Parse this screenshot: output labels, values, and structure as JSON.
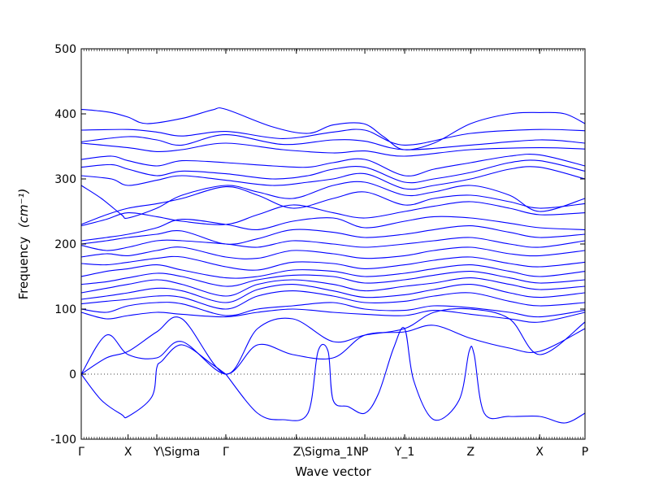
{
  "chart_data": {
    "type": "line",
    "xlabel": "Wave vector",
    "ylabel": "Frequency",
    "ylabel_unit": "(cm⁻¹)",
    "ylim": [
      -100,
      500
    ],
    "yticks": [
      -100,
      0,
      100,
      200,
      300,
      400,
      500
    ],
    "xlim": [
      0,
      1
    ],
    "zero_line": true,
    "grid": false,
    "line_color": "#0000ff",
    "xticks": [
      {
        "pos": 0.0,
        "label": "Γ"
      },
      {
        "pos": 0.093,
        "label": "X"
      },
      {
        "pos": 0.15,
        "label": "Y\\Sigma"
      },
      {
        "pos": 0.287,
        "label": "Γ"
      },
      {
        "pos": 0.427,
        "label": "Z\\Sigma_1N"
      },
      {
        "pos": 0.563,
        "label": "P"
      },
      {
        "pos": 0.642,
        "label": "Y_1"
      },
      {
        "pos": 0.773,
        "label": "Z"
      },
      {
        "pos": 0.91,
        "label": "X"
      },
      {
        "pos": 1.0,
        "label": "P"
      }
    ],
    "series": [
      {
        "x": [
          0.0,
          0.03,
          0.06,
          0.093,
          0.13,
          0.2,
          0.26,
          0.287,
          0.38,
          0.45,
          0.5,
          0.56,
          0.6,
          0.64,
          0.7,
          0.773,
          0.85,
          0.91,
          0.96,
          1.0
        ],
        "y": [
          407,
          405,
          402,
          395,
          385,
          393,
          406,
          407,
          380,
          370,
          383,
          385,
          365,
          345,
          355,
          385,
          400,
          402,
          400,
          385
        ]
      },
      {
        "x": [
          0.0,
          0.093,
          0.15,
          0.2,
          0.287,
          0.4,
          0.5,
          0.563,
          0.642,
          0.773,
          0.91,
          1.0
        ],
        "y": [
          375,
          376,
          372,
          366,
          373,
          362,
          372,
          375,
          352,
          370,
          376,
          374
        ]
      },
      {
        "x": [
          0.0,
          0.093,
          0.15,
          0.2,
          0.287,
          0.4,
          0.5,
          0.563,
          0.642,
          0.773,
          0.91,
          1.0
        ],
        "y": [
          357,
          365,
          360,
          352,
          368,
          353,
          360,
          358,
          345,
          352,
          360,
          355
        ]
      },
      {
        "x": [
          0.0,
          0.093,
          0.15,
          0.2,
          0.287,
          0.4,
          0.5,
          0.563,
          0.642,
          0.773,
          0.91,
          1.0
        ],
        "y": [
          355,
          348,
          342,
          345,
          355,
          345,
          340,
          343,
          335,
          345,
          348,
          346
        ]
      },
      {
        "x": [
          0.0,
          0.06,
          0.093,
          0.15,
          0.2,
          0.287,
          0.38,
          0.45,
          0.5,
          0.563,
          0.642,
          0.7,
          0.773,
          0.85,
          0.91,
          1.0
        ],
        "y": [
          330,
          335,
          328,
          320,
          328,
          325,
          320,
          318,
          325,
          330,
          305,
          315,
          325,
          335,
          337,
          320
        ]
      },
      {
        "x": [
          0.0,
          0.06,
          0.093,
          0.15,
          0.2,
          0.287,
          0.38,
          0.45,
          0.5,
          0.563,
          0.642,
          0.7,
          0.773,
          0.85,
          0.91,
          1.0
        ],
        "y": [
          318,
          322,
          315,
          305,
          312,
          308,
          300,
          305,
          315,
          318,
          295,
          300,
          310,
          325,
          328,
          312
        ]
      },
      {
        "x": [
          0.0,
          0.06,
          0.093,
          0.15,
          0.2,
          0.287,
          0.38,
          0.45,
          0.5,
          0.563,
          0.642,
          0.7,
          0.773,
          0.85,
          0.91,
          1.0
        ],
        "y": [
          305,
          300,
          290,
          298,
          305,
          298,
          290,
          295,
          300,
          308,
          285,
          290,
          300,
          315,
          318,
          300
        ]
      },
      {
        "x": [
          0.0,
          0.04,
          0.08,
          0.093,
          0.15,
          0.2,
          0.287,
          0.35,
          0.42,
          0.5,
          0.563,
          0.642,
          0.7,
          0.773,
          0.85,
          0.91,
          1.0
        ],
        "y": [
          290,
          270,
          245,
          240,
          255,
          275,
          290,
          280,
          270,
          290,
          295,
          275,
          280,
          290,
          275,
          250,
          270
        ]
      },
      {
        "x": [
          0.0,
          0.05,
          0.093,
          0.15,
          0.2,
          0.287,
          0.35,
          0.42,
          0.5,
          0.563,
          0.642,
          0.7,
          0.773,
          0.85,
          0.91,
          1.0
        ],
        "y": [
          230,
          245,
          255,
          262,
          270,
          288,
          275,
          255,
          270,
          280,
          260,
          270,
          275,
          265,
          255,
          262
        ]
      },
      {
        "x": [
          0.0,
          0.05,
          0.093,
          0.15,
          0.2,
          0.287,
          0.35,
          0.42,
          0.5,
          0.563,
          0.642,
          0.7,
          0.773,
          0.85,
          0.91,
          1.0
        ],
        "y": [
          228,
          238,
          248,
          242,
          235,
          230,
          245,
          260,
          248,
          240,
          250,
          258,
          265,
          255,
          245,
          248
        ]
      },
      {
        "x": [
          0.0,
          0.05,
          0.093,
          0.15,
          0.2,
          0.287,
          0.35,
          0.42,
          0.5,
          0.563,
          0.642,
          0.7,
          0.773,
          0.85,
          0.91,
          1.0
        ],
        "y": [
          205,
          210,
          215,
          225,
          238,
          230,
          222,
          235,
          240,
          225,
          235,
          242,
          240,
          232,
          225,
          222
        ]
      },
      {
        "x": [
          0.0,
          0.05,
          0.093,
          0.15,
          0.2,
          0.287,
          0.35,
          0.42,
          0.5,
          0.563,
          0.642,
          0.7,
          0.773,
          0.85,
          0.91,
          1.0
        ],
        "y": [
          200,
          205,
          210,
          215,
          220,
          200,
          208,
          222,
          218,
          210,
          215,
          222,
          228,
          218,
          210,
          215
        ]
      },
      {
        "x": [
          0.0,
          0.05,
          0.093,
          0.15,
          0.2,
          0.287,
          0.35,
          0.42,
          0.5,
          0.563,
          0.642,
          0.7,
          0.773,
          0.85,
          0.91,
          1.0
        ],
        "y": [
          198,
          190,
          195,
          205,
          205,
          200,
          195,
          205,
          200,
          195,
          200,
          205,
          210,
          200,
          195,
          205
        ]
      },
      {
        "x": [
          0.0,
          0.05,
          0.093,
          0.15,
          0.2,
          0.287,
          0.35,
          0.42,
          0.5,
          0.563,
          0.642,
          0.7,
          0.773,
          0.85,
          0.91,
          1.0
        ],
        "y": [
          180,
          185,
          182,
          190,
          195,
          180,
          178,
          190,
          185,
          178,
          182,
          190,
          195,
          185,
          182,
          190
        ]
      },
      {
        "x": [
          0.0,
          0.05,
          0.093,
          0.15,
          0.2,
          0.287,
          0.35,
          0.42,
          0.5,
          0.563,
          0.642,
          0.7,
          0.773,
          0.85,
          0.91,
          1.0
        ],
        "y": [
          170,
          168,
          172,
          178,
          180,
          165,
          160,
          172,
          170,
          162,
          168,
          175,
          180,
          170,
          165,
          172
        ]
      },
      {
        "x": [
          0.0,
          0.05,
          0.093,
          0.15,
          0.2,
          0.287,
          0.35,
          0.42,
          0.5,
          0.563,
          0.642,
          0.7,
          0.773,
          0.85,
          0.91,
          1.0
        ],
        "y": [
          150,
          158,
          162,
          168,
          160,
          148,
          150,
          160,
          158,
          150,
          155,
          162,
          168,
          158,
          150,
          158
        ]
      },
      {
        "x": [
          0.0,
          0.05,
          0.093,
          0.15,
          0.2,
          0.287,
          0.35,
          0.42,
          0.5,
          0.563,
          0.642,
          0.7,
          0.773,
          0.85,
          0.91,
          1.0
        ],
        "y": [
          138,
          142,
          148,
          155,
          150,
          135,
          145,
          152,
          150,
          140,
          145,
          152,
          158,
          148,
          140,
          145
        ]
      },
      {
        "x": [
          0.0,
          0.05,
          0.093,
          0.15,
          0.2,
          0.287,
          0.35,
          0.42,
          0.5,
          0.563,
          0.642,
          0.7,
          0.773,
          0.85,
          0.91,
          1.0
        ],
        "y": [
          125,
          132,
          138,
          145,
          138,
          120,
          138,
          145,
          138,
          128,
          135,
          140,
          148,
          138,
          130,
          135
        ]
      },
      {
        "x": [
          0.0,
          0.05,
          0.093,
          0.15,
          0.2,
          0.287,
          0.35,
          0.42,
          0.5,
          0.563,
          0.642,
          0.7,
          0.773,
          0.85,
          0.91,
          1.0
        ],
        "y": [
          115,
          120,
          125,
          132,
          128,
          110,
          130,
          138,
          128,
          118,
          122,
          130,
          138,
          125,
          118,
          125
        ]
      },
      {
        "x": [
          0.0,
          0.05,
          0.093,
          0.15,
          0.2,
          0.287,
          0.35,
          0.42,
          0.5,
          0.563,
          0.642,
          0.7,
          0.773,
          0.85,
          0.91,
          1.0
        ],
        "y": [
          108,
          112,
          115,
          120,
          118,
          100,
          120,
          128,
          120,
          110,
          112,
          120,
          125,
          112,
          105,
          110
        ]
      },
      {
        "x": [
          0.0,
          0.05,
          0.093,
          0.15,
          0.2,
          0.287,
          0.35,
          0.42,
          0.5,
          0.563,
          0.642,
          0.7,
          0.773,
          0.85,
          0.91,
          1.0
        ],
        "y": [
          100,
          95,
          105,
          110,
          108,
          90,
          100,
          105,
          110,
          100,
          98,
          105,
          102,
          95,
          88,
          98
        ]
      },
      {
        "x": [
          0.0,
          0.05,
          0.093,
          0.15,
          0.2,
          0.287,
          0.35,
          0.42,
          0.5,
          0.563,
          0.642,
          0.7,
          0.773,
          0.85,
          0.91,
          1.0
        ],
        "y": [
          95,
          85,
          90,
          95,
          92,
          88,
          95,
          100,
          95,
          92,
          90,
          98,
          92,
          85,
          80,
          95
        ]
      },
      {
        "x": [
          0.0,
          0.05,
          0.093,
          0.15,
          0.2,
          0.287,
          0.35,
          0.42,
          0.5,
          0.563,
          0.642,
          0.7,
          0.773,
          0.85,
          0.91,
          1.0
        ],
        "y": [
          0,
          25,
          35,
          65,
          85,
          0,
          70,
          85,
          50,
          60,
          70,
          95,
          100,
          85,
          30,
          80
        ]
      },
      {
        "x": [
          0.0,
          0.05,
          0.093,
          0.15,
          0.2,
          0.287,
          0.35,
          0.42,
          0.5,
          0.563,
          0.642,
          0.7,
          0.773,
          0.85,
          0.91,
          1.0
        ],
        "y": [
          0,
          60,
          30,
          25,
          50,
          0,
          45,
          30,
          25,
          60,
          65,
          75,
          55,
          40,
          35,
          70
        ]
      },
      {
        "x": [
          0.0,
          0.04,
          0.08,
          0.093,
          0.14,
          0.15,
          0.16,
          0.2,
          0.26,
          0.287
        ],
        "y": [
          0,
          -40,
          -62,
          -65,
          -35,
          10,
          20,
          45,
          15,
          0
        ]
      },
      {
        "x": [
          0.287,
          0.35,
          0.4,
          0.45,
          0.47,
          0.49,
          0.5,
          0.53,
          0.563,
          0.59,
          0.62,
          0.642,
          0.66,
          0.7,
          0.75,
          0.77,
          0.78,
          0.8,
          0.85,
          0.91,
          0.96,
          1.0
        ],
        "y": [
          0,
          -60,
          -70,
          -60,
          35,
          35,
          -40,
          -50,
          -60,
          -30,
          40,
          70,
          -10,
          -70,
          -40,
          35,
          30,
          -60,
          -65,
          -65,
          -75,
          -60
        ]
      }
    ]
  }
}
